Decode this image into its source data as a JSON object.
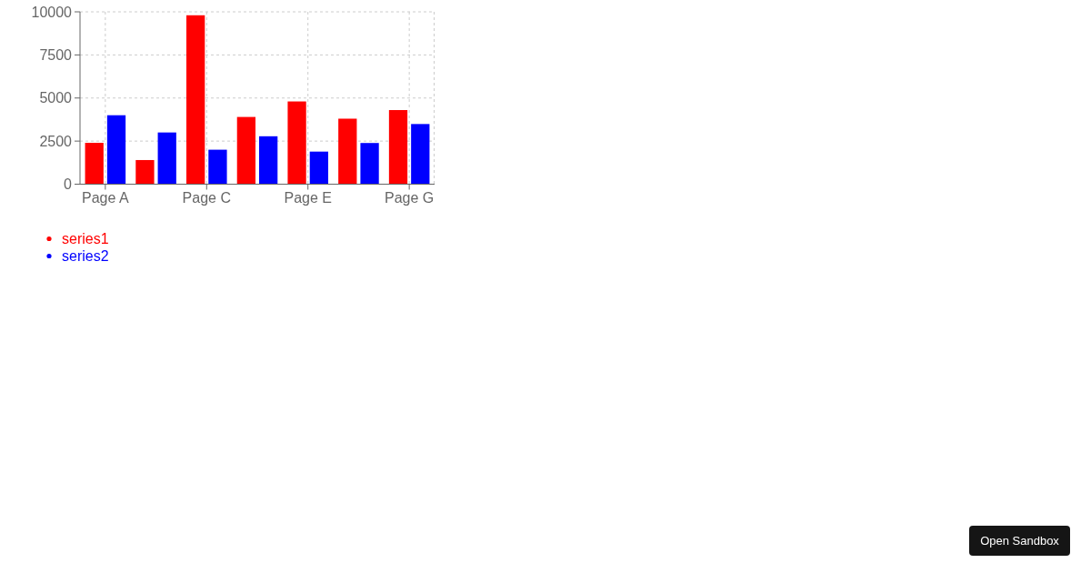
{
  "chart_data": {
    "type": "bar",
    "categories": [
      "Page A",
      null,
      "Page C",
      null,
      "Page E",
      null,
      "Page G"
    ],
    "series": [
      {
        "name": "series1",
        "color": "#ff0000",
        "values": [
          2400,
          1400,
          9800,
          3900,
          4800,
          3800,
          4300
        ]
      },
      {
        "name": "series2",
        "color": "#0000ff",
        "values": [
          4000,
          3000,
          2000,
          2780,
          1890,
          2390,
          3490
        ]
      }
    ],
    "ylim": [
      0,
      10000
    ],
    "yticks": [
      0,
      2500,
      5000,
      7500,
      10000
    ],
    "grid": true,
    "legend": "bottom left",
    "annotations": [
      "Open Sandbox"
    ]
  }
}
